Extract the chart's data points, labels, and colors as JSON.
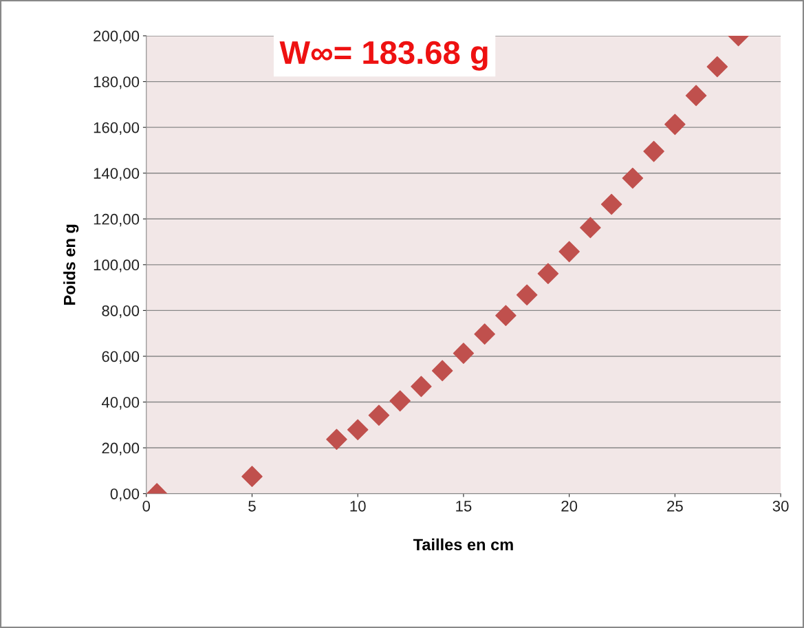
{
  "chart_data": {
    "type": "scatter",
    "xlabel": "Tailles en cm",
    "ylabel": "Poids en g",
    "annotations": [
      "W∞= 183.68 g"
    ],
    "x": [
      0.5,
      5,
      9,
      10,
      11,
      12,
      13,
      14,
      15,
      16,
      17,
      18,
      19,
      20,
      21,
      22,
      23,
      24,
      25,
      26,
      27,
      28
    ],
    "series": [
      {
        "color": "#c0504d",
        "values": [
          0,
          7.5,
          23.7,
          27.9,
          34.2,
          40.5,
          46.8,
          53.7,
          61.3,
          69.7,
          77.8,
          86.8,
          96.1,
          105.7,
          116.2,
          126.4,
          137.8,
          149.5,
          161.3,
          173.9,
          186.5,
          200
        ]
      }
    ],
    "marker": "diamond",
    "grid": "y",
    "legend": false,
    "xlim": [
      0,
      30
    ],
    "xticks": [
      0,
      5,
      10,
      15,
      20,
      25,
      30
    ],
    "ylim": [
      0,
      200
    ],
    "yticks": [
      {
        "value": 0,
        "label": "0,00"
      },
      {
        "value": 20,
        "label": "20,00"
      },
      {
        "value": 40,
        "label": "40,00"
      },
      {
        "value": 60,
        "label": "60,00"
      },
      {
        "value": 80,
        "label": "80,00"
      },
      {
        "value": 100,
        "label": "100,00"
      },
      {
        "value": 120,
        "label": "120,00"
      },
      {
        "value": 140,
        "label": "140,00"
      },
      {
        "value": 160,
        "label": "160,00"
      },
      {
        "value": 180,
        "label": "180,00"
      },
      {
        "value": 200,
        "label": "200,00"
      }
    ]
  }
}
